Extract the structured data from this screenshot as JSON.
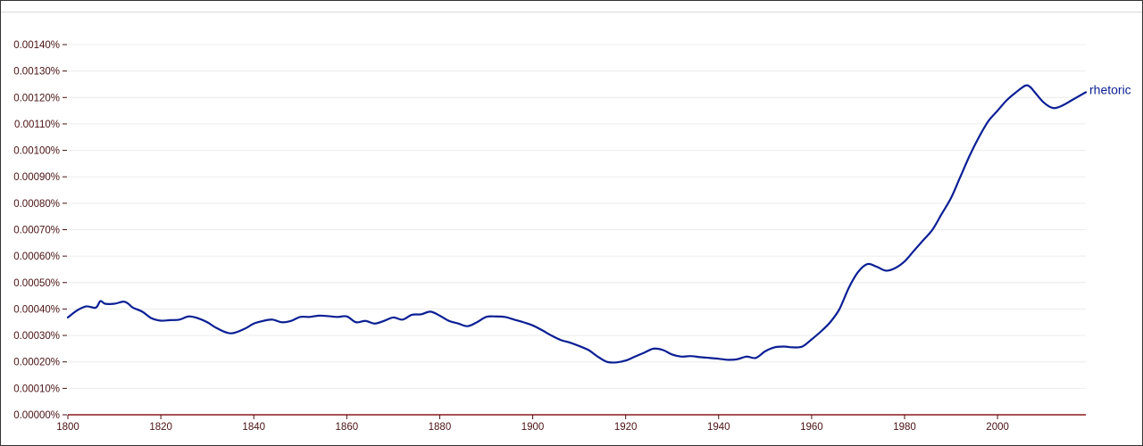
{
  "chart_data": {
    "type": "line",
    "title": "",
    "xlabel": "",
    "ylabel": "",
    "xlim": [
      1800,
      2019
    ],
    "ylim": [
      0,
      0.0014
    ],
    "y_tick_values": [
      0,
      0.0001,
      0.0002,
      0.0003,
      0.0004,
      0.0005,
      0.0006,
      0.0007,
      0.0008,
      0.0009,
      0.001,
      0.0011,
      0.0012,
      0.0013,
      0.0014
    ],
    "y_tick_labels": [
      "0.00000%",
      "0.00010%",
      "0.00020%",
      "0.00030%",
      "0.00040%",
      "0.00050%",
      "0.00060%",
      "0.00070%",
      "0.00080%",
      "0.00090%",
      "0.00100%",
      "0.00110%",
      "0.00120%",
      "0.00130%",
      "0.00140%"
    ],
    "x_tick_values": [
      1800,
      1820,
      1840,
      1860,
      1880,
      1900,
      1920,
      1940,
      1960,
      1980,
      2000
    ],
    "x_tick_labels": [
      "1800",
      "1820",
      "1840",
      "1860",
      "1880",
      "1900",
      "1920",
      "1940",
      "1960",
      "1980",
      "2000"
    ],
    "grid": true,
    "legend": "end-of-line label",
    "colors": {
      "series": "#0b1f94",
      "axis": "#8b1a1a",
      "grid": "#ececec",
      "tick_text": "#4a1212"
    },
    "series": [
      {
        "name": "rhetoric",
        "x": [
          1800,
          1802,
          1804,
          1806,
          1807,
          1808,
          1810,
          1812,
          1813,
          1814,
          1816,
          1818,
          1820,
          1822,
          1824,
          1826,
          1828,
          1830,
          1832,
          1835,
          1838,
          1840,
          1842,
          1844,
          1846,
          1848,
          1850,
          1852,
          1854,
          1856,
          1858,
          1860,
          1862,
          1864,
          1866,
          1868,
          1870,
          1872,
          1874,
          1876,
          1878,
          1880,
          1882,
          1884,
          1886,
          1888,
          1890,
          1892,
          1894,
          1896,
          1898,
          1900,
          1902,
          1904,
          1906,
          1908,
          1910,
          1912,
          1914,
          1916,
          1918,
          1920,
          1922,
          1924,
          1926,
          1928,
          1930,
          1932,
          1934,
          1936,
          1938,
          1940,
          1942,
          1944,
          1946,
          1948,
          1950,
          1952,
          1954,
          1956,
          1958,
          1960,
          1962,
          1964,
          1966,
          1968,
          1970,
          1972,
          1974,
          1976,
          1978,
          1980,
          1982,
          1984,
          1986,
          1988,
          1990,
          1992,
          1994,
          1996,
          1998,
          2000,
          2002,
          2004,
          2006,
          2007,
          2008,
          2010,
          2012,
          2014,
          2016,
          2018,
          2019
        ],
        "values": [
          0.000368,
          0.000395,
          0.00041,
          0.000405,
          0.00043,
          0.00042,
          0.00042,
          0.000428,
          0.00042,
          0.000405,
          0.00039,
          0.000365,
          0.000356,
          0.000358,
          0.00036,
          0.000372,
          0.000365,
          0.00035,
          0.000328,
          0.000308,
          0.000325,
          0.000345,
          0.000355,
          0.00036,
          0.00035,
          0.000355,
          0.00037,
          0.00037,
          0.000375,
          0.000373,
          0.00037,
          0.000372,
          0.00035,
          0.000355,
          0.000345,
          0.000355,
          0.000368,
          0.00036,
          0.000378,
          0.00038,
          0.00039,
          0.000375,
          0.000355,
          0.000345,
          0.000335,
          0.00035,
          0.00037,
          0.000372,
          0.00037,
          0.00036,
          0.00035,
          0.000338,
          0.00032,
          0.0003,
          0.000283,
          0.000273,
          0.00026,
          0.000245,
          0.00022,
          0.0002,
          0.000198,
          0.000205,
          0.00022,
          0.000235,
          0.00025,
          0.000245,
          0.000228,
          0.00022,
          0.000222,
          0.000218,
          0.000215,
          0.000212,
          0.000208,
          0.00021,
          0.00022,
          0.000215,
          0.00024,
          0.000255,
          0.000258,
          0.000255,
          0.000258,
          0.000285,
          0.000315,
          0.00035,
          0.0004,
          0.00048,
          0.00054,
          0.00057,
          0.00056,
          0.000545,
          0.000555,
          0.00058,
          0.00062,
          0.00066,
          0.0007,
          0.00076,
          0.00082,
          0.0009,
          0.00098,
          0.00105,
          0.00111,
          0.00115,
          0.00119,
          0.00122,
          0.001245,
          0.00124,
          0.00122,
          0.00118,
          0.00116,
          0.00117,
          0.00119,
          0.00121,
          0.00122
        ]
      }
    ]
  }
}
